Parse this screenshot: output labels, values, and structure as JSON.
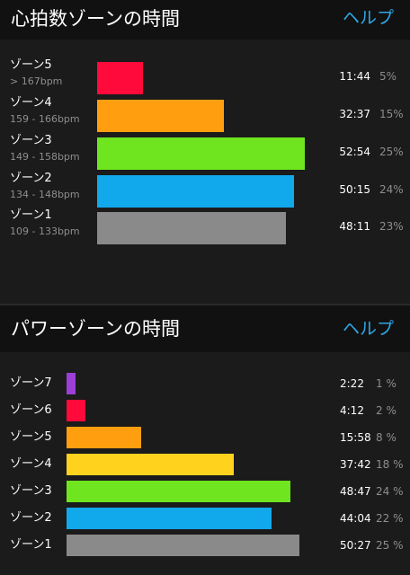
{
  "heart_rate": {
    "title": "心拍数ゾーンの時間",
    "help_label": "ヘルプ",
    "zones": [
      {
        "name": "ゾーン5",
        "range": "> 167bpm",
        "time": "11:44",
        "percent": "5%",
        "fraction": 0.22,
        "color": "#ff0a3a"
      },
      {
        "name": "ゾーン4",
        "range": "159 - 166bpm",
        "time": "32:37",
        "percent": "15%",
        "fraction": 0.61,
        "color": "#ff9f10"
      },
      {
        "name": "ゾーン3",
        "range": "149 - 158bpm",
        "time": "52:54",
        "percent": "25%",
        "fraction": 1.0,
        "color": "#6ee51f"
      },
      {
        "name": "ゾーン2",
        "range": "134 - 148bpm",
        "time": "50:15",
        "percent": "24%",
        "fraction": 0.95,
        "color": "#12a8ec"
      },
      {
        "name": "ゾーン1",
        "range": "109 - 133bpm",
        "time": "48:11",
        "percent": "23%",
        "fraction": 0.91,
        "color": "#8a8a8a"
      }
    ]
  },
  "power": {
    "title": "パワーゾーンの時間",
    "help_label": "ヘルプ",
    "zones": [
      {
        "name": "ゾーン7",
        "time": "2:22",
        "percent": "1 %",
        "fraction": 0.04,
        "color": "#9b3fd6"
      },
      {
        "name": "ゾーン6",
        "time": "4:12",
        "percent": "2 %",
        "fraction": 0.08,
        "color": "#ff0a3a"
      },
      {
        "name": "ゾーン5",
        "time": "15:58",
        "percent": "8 %",
        "fraction": 0.32,
        "color": "#ff9f10"
      },
      {
        "name": "ゾーン4",
        "time": "37:42",
        "percent": "18 %",
        "fraction": 0.72,
        "color": "#ffd21e"
      },
      {
        "name": "ゾーン3",
        "time": "48:47",
        "percent": "24 %",
        "fraction": 0.96,
        "color": "#6ee51f"
      },
      {
        "name": "ゾーン2",
        "time": "44:04",
        "percent": "22 %",
        "fraction": 0.88,
        "color": "#12a8ec"
      },
      {
        "name": "ゾーン1",
        "time": "50:27",
        "percent": "25 %",
        "fraction": 1.0,
        "color": "#8a8a8a"
      }
    ]
  }
}
